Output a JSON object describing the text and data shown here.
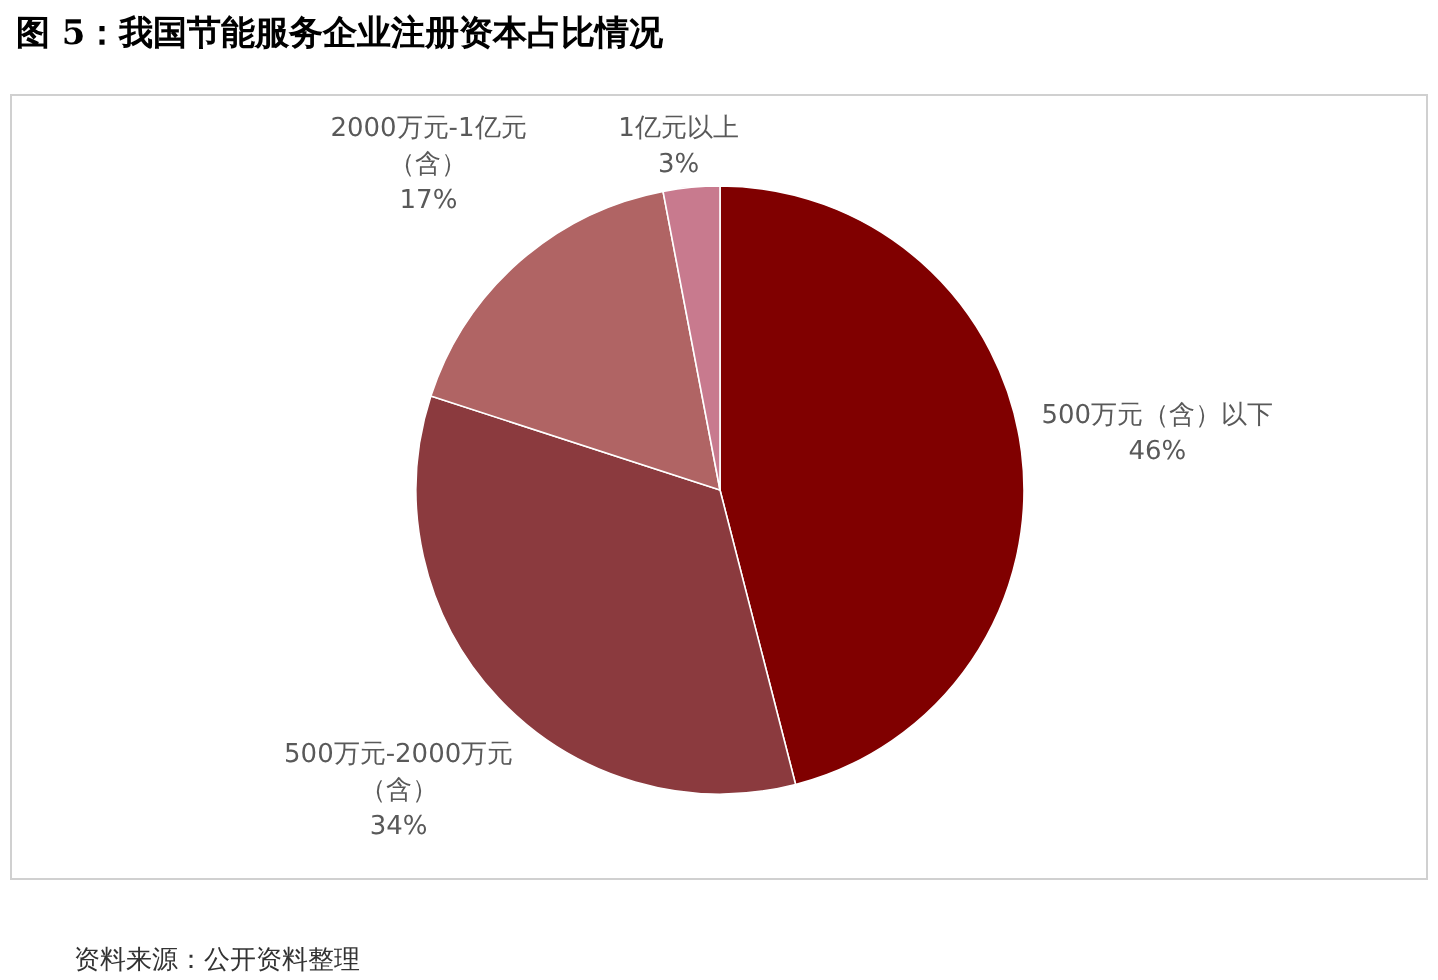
{
  "chart_data": {
    "type": "pie",
    "title": "图 5：我国节能服务企业注册资本占比情况",
    "categories": [
      "500万元（含）以下",
      "500万元-2000万元（含）",
      "2000万元-1亿元（含）",
      "1亿元以上"
    ],
    "values": [
      46,
      34,
      17,
      3
    ],
    "value_labels": [
      "46%",
      "34%",
      "17%",
      "3%"
    ],
    "colors": [
      "#800000",
      "#8b3a3e",
      "#b06464",
      "#c87a8e"
    ],
    "legend": false,
    "annotations": [
      "资料来源：公开资料整理"
    ]
  }
}
